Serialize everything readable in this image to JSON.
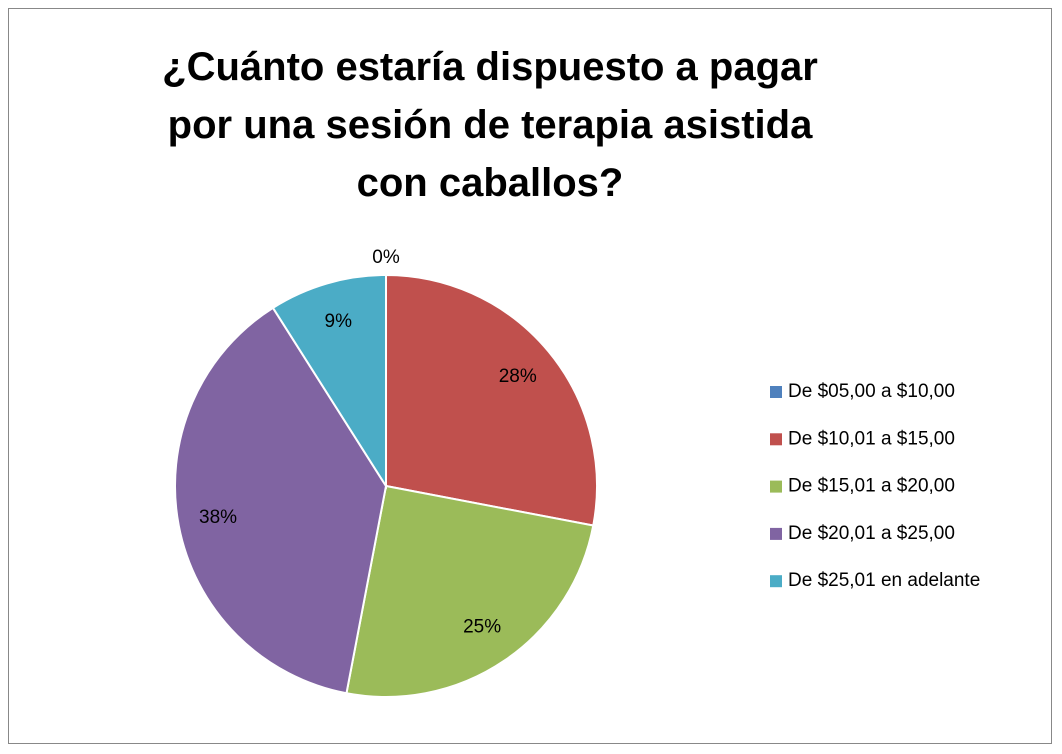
{
  "chart_data": {
    "type": "pie",
    "title": "¿Cuánto estaría dispuesto a pagar por una sesión de terapia asistida con caballos?",
    "categories": [
      "De $05,00 a $10,00",
      "De $10,01 a $15,00",
      "De $15,01 a $20,00",
      "De $20,01 a $25,00",
      "De $25,01 en adelante"
    ],
    "values": [
      0,
      28,
      25,
      38,
      9
    ],
    "value_labels": [
      "0%",
      "28%",
      "25%",
      "38%",
      "9%"
    ],
    "colors": [
      "#4f81bd",
      "#c0504d",
      "#9bbb59",
      "#8064a2",
      "#4bacc6"
    ],
    "legend": "right"
  }
}
